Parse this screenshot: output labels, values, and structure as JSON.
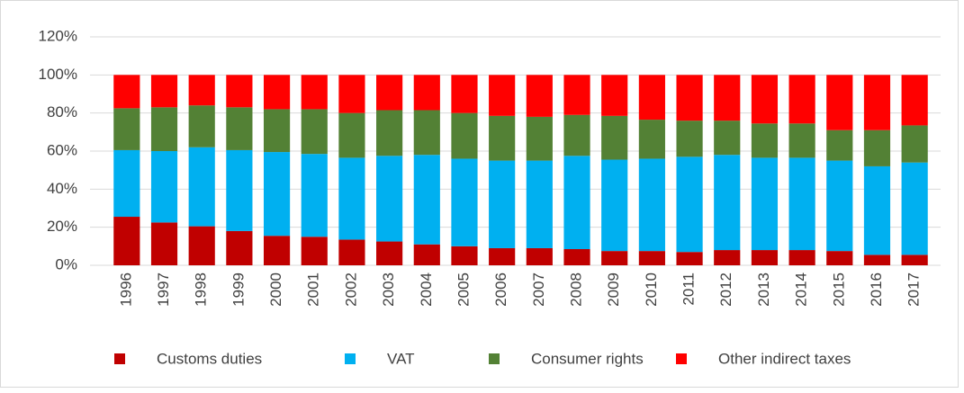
{
  "chart_data": {
    "type": "stacked_bar",
    "categories": [
      "1996",
      "1997",
      "1998",
      "1999",
      "2000",
      "2001",
      "2002",
      "2003",
      "2004",
      "2005",
      "2006",
      "2007",
      "2008",
      "2009",
      "2010",
      "2011",
      "2012",
      "2013",
      "2014",
      "2015",
      "2016",
      "2017"
    ],
    "series": [
      {
        "name": "Customs duties",
        "color": "#c00000",
        "values": [
          25.5,
          22.5,
          20.5,
          18,
          15.5,
          15,
          13.5,
          12.5,
          11,
          10,
          9,
          9,
          8.5,
          7.5,
          7.5,
          7,
          8,
          8,
          8,
          7.5,
          5.5,
          5.5
        ]
      },
      {
        "name": "VAT",
        "color": "#00b0f0",
        "values": [
          35,
          37.5,
          41.5,
          42.5,
          44,
          43.5,
          43,
          45,
          47,
          46,
          46,
          46,
          49,
          48,
          48.5,
          50,
          50,
          48.5,
          48.5,
          47.5,
          46.5,
          48.5
        ]
      },
      {
        "name": "Consumer rights",
        "color": "#538135",
        "values": [
          22,
          23,
          22,
          22.5,
          22.5,
          23.5,
          23.5,
          24,
          23.5,
          24,
          23.5,
          23,
          21.5,
          23,
          20.5,
          19,
          18,
          18,
          18,
          16,
          19,
          19.5
        ]
      },
      {
        "name": "Other indirect taxes",
        "color": "#ff0000",
        "values": [
          17.5,
          17,
          16,
          17,
          18,
          18,
          20,
          18.5,
          18.5,
          20,
          21.5,
          22,
          21,
          21.5,
          23.5,
          24,
          24,
          25.5,
          25.5,
          29,
          29,
          26.5
        ]
      }
    ],
    "ylim": [
      0,
      120
    ],
    "yticks": [
      {
        "value": 0,
        "label": "0%"
      },
      {
        "value": 20,
        "label": "20%"
      },
      {
        "value": 40,
        "label": "40%"
      },
      {
        "value": 60,
        "label": "60%"
      },
      {
        "value": 80,
        "label": "80%"
      },
      {
        "value": 100,
        "label": "100%"
      },
      {
        "value": 120,
        "label": "120%"
      }
    ],
    "grid": true
  }
}
